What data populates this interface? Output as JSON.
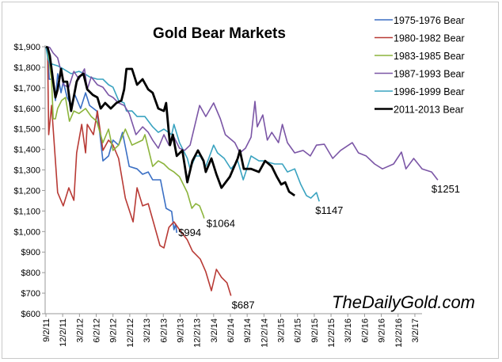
{
  "chart_data": {
    "type": "line",
    "title": "Gold Bear Markets",
    "xlabel": "",
    "ylabel": "",
    "x_unit": "months since 9/2/11",
    "ylim": [
      600,
      1900
    ],
    "y_ticks": [
      "$600",
      "$700",
      "$800",
      "$900",
      "$1,000",
      "$1,100",
      "$1,200",
      "$1,300",
      "$1,400",
      "$1,500",
      "$1,600",
      "$1,700",
      "$1,800",
      "$1,900"
    ],
    "y_tick_values": [
      600,
      700,
      800,
      900,
      1000,
      1100,
      1200,
      1300,
      1400,
      1500,
      1600,
      1700,
      1800,
      1900
    ],
    "x_ticks": [
      "9/2/11",
      "12/2/11",
      "3/2/12",
      "6/2/12",
      "9/2/12",
      "12/2/12",
      "3/2/13",
      "6/2/13",
      "9/2/13",
      "12/2/13",
      "3/2/14",
      "6/2/14",
      "9/2/14",
      "12/2/14",
      "3/2/15",
      "6/2/15",
      "9/2/15",
      "12/2/15",
      "3/2/16",
      "6/2/16",
      "9/2/16",
      "12/2/16",
      "3/2/17"
    ],
    "legend_position": "top-right",
    "grid": false,
    "watermark": "TheDailyGold.com",
    "series": [
      {
        "name": "1975-1976 Bear",
        "color": "#3a6fc4",
        "width": 1.6,
        "end_label": "$994",
        "points": [
          [
            0,
            1900
          ],
          [
            0.3,
            1885
          ],
          [
            0.6,
            1742
          ],
          [
            1.3,
            1742
          ],
          [
            1.7,
            1638
          ],
          [
            2.1,
            1769
          ],
          [
            2.7,
            1676
          ],
          [
            3.1,
            1730
          ],
          [
            3.8,
            1653
          ],
          [
            4.5,
            1614
          ],
          [
            5.2,
            1665
          ],
          [
            6.2,
            1599
          ],
          [
            7.1,
            1676
          ],
          [
            7.8,
            1614
          ],
          [
            9.1,
            1587
          ],
          [
            9.5,
            1510
          ],
          [
            10.2,
            1344
          ],
          [
            11.2,
            1368
          ],
          [
            12.0,
            1445
          ],
          [
            13.0,
            1421
          ],
          [
            13.7,
            1483
          ],
          [
            14.9,
            1317
          ],
          [
            16.3,
            1305
          ],
          [
            17.3,
            1279
          ],
          [
            18.3,
            1290
          ],
          [
            19.1,
            1252
          ],
          [
            20.5,
            1252
          ],
          [
            21.5,
            1113
          ],
          [
            22.5,
            1098
          ],
          [
            22.9,
            1009
          ],
          [
            23.2,
            1036
          ],
          [
            23.4,
            994
          ]
        ]
      },
      {
        "name": "1980-1982 Bear",
        "color": "#b83a35",
        "width": 1.6,
        "end_label": "$687",
        "points": [
          [
            0,
            1900
          ],
          [
            0.3,
            1885
          ],
          [
            0.5,
            1472
          ],
          [
            1.0,
            1614
          ],
          [
            2.1,
            1190
          ],
          [
            3.1,
            1125
          ],
          [
            4.1,
            1213
          ],
          [
            5.0,
            1152
          ],
          [
            5.5,
            1383
          ],
          [
            6.4,
            1522
          ],
          [
            7.1,
            1383
          ],
          [
            7.4,
            1522
          ],
          [
            8.5,
            1472
          ],
          [
            9.2,
            1587
          ],
          [
            10.2,
            1395
          ],
          [
            11.2,
            1445
          ],
          [
            12.0,
            1421
          ],
          [
            13.0,
            1356
          ],
          [
            14.2,
            1163
          ],
          [
            15.6,
            1047
          ],
          [
            16.3,
            1213
          ],
          [
            17.3,
            1125
          ],
          [
            18.3,
            1136
          ],
          [
            19.1,
            1059
          ],
          [
            20.4,
            932
          ],
          [
            21.1,
            920
          ],
          [
            22.0,
            1020
          ],
          [
            22.9,
            1047
          ],
          [
            23.9,
            1009
          ],
          [
            25.3,
            959
          ],
          [
            26.2,
            905
          ],
          [
            27.6,
            866
          ],
          [
            28.6,
            804
          ],
          [
            29.6,
            712
          ],
          [
            30.5,
            816
          ],
          [
            31.4,
            777
          ],
          [
            32.4,
            750
          ],
          [
            33.1,
            687
          ]
        ]
      },
      {
        "name": "1983-1985 Bear",
        "color": "#8cb43c",
        "width": 1.6,
        "end_label": "$1064",
        "points": [
          [
            0,
            1900
          ],
          [
            0.3,
            1885
          ],
          [
            0.6,
            1830
          ],
          [
            1.0,
            1742
          ],
          [
            1.3,
            1549
          ],
          [
            1.7,
            1549
          ],
          [
            2.1,
            1599
          ],
          [
            2.8,
            1638
          ],
          [
            3.5,
            1653
          ],
          [
            4.2,
            1537
          ],
          [
            5.0,
            1587
          ],
          [
            5.9,
            1575
          ],
          [
            7.1,
            1599
          ],
          [
            8.1,
            1560
          ],
          [
            9.1,
            1537
          ],
          [
            10.2,
            1433
          ],
          [
            11.2,
            1499
          ],
          [
            12.0,
            1395
          ],
          [
            13.0,
            1421
          ],
          [
            14.2,
            1499
          ],
          [
            15.4,
            1421
          ],
          [
            16.3,
            1433
          ],
          [
            17.3,
            1445
          ],
          [
            17.7,
            1472
          ],
          [
            18.3,
            1406
          ],
          [
            19.1,
            1317
          ],
          [
            20.1,
            1344
          ],
          [
            21.1,
            1329
          ],
          [
            22.0,
            1305
          ],
          [
            22.9,
            1290
          ],
          [
            23.9,
            1267
          ],
          [
            25.3,
            1190
          ],
          [
            26.1,
            1113
          ],
          [
            26.8,
            1136
          ],
          [
            27.5,
            1125
          ],
          [
            28.2,
            1075
          ],
          [
            28.3,
            1064
          ]
        ]
      },
      {
        "name": "1987-1993 Bear",
        "color": "#7b56a6",
        "width": 1.6,
        "end_label": "$1251",
        "points": [
          [
            0.3,
            1900
          ],
          [
            0.7,
            1896
          ],
          [
            1.3,
            1869
          ],
          [
            2.1,
            1846
          ],
          [
            2.7,
            1780
          ],
          [
            3.1,
            1715
          ],
          [
            4.1,
            1703
          ],
          [
            5.0,
            1780
          ],
          [
            5.9,
            1742
          ],
          [
            6.9,
            1792
          ],
          [
            7.4,
            1692
          ],
          [
            8.1,
            1753
          ],
          [
            9.2,
            1715
          ],
          [
            10.2,
            1703
          ],
          [
            11.2,
            1665
          ],
          [
            12.0,
            1653
          ],
          [
            13.0,
            1626
          ],
          [
            14.0,
            1614
          ],
          [
            14.9,
            1575
          ],
          [
            16.1,
            1472
          ],
          [
            17.3,
            1510
          ],
          [
            18.3,
            1483
          ],
          [
            19.1,
            1445
          ],
          [
            20.1,
            1406
          ],
          [
            21.1,
            1472
          ],
          [
            22.0,
            1421
          ],
          [
            22.9,
            1460
          ],
          [
            23.9,
            1406
          ],
          [
            24.8,
            1395
          ],
          [
            25.8,
            1421
          ],
          [
            27.5,
            1614
          ],
          [
            28.6,
            1560
          ],
          [
            30.0,
            1626
          ],
          [
            31.2,
            1549
          ],
          [
            32.1,
            1472
          ],
          [
            33.8,
            1433
          ],
          [
            34.7,
            1383
          ],
          [
            35.7,
            1406
          ],
          [
            36.7,
            1460
          ],
          [
            37.4,
            1634
          ],
          [
            37.8,
            1510
          ],
          [
            38.8,
            1568
          ],
          [
            39.6,
            1445
          ],
          [
            40.4,
            1483
          ],
          [
            41.6,
            1433
          ],
          [
            42.3,
            1522
          ],
          [
            43.2,
            1433
          ],
          [
            44.5,
            1383
          ],
          [
            46.0,
            1395
          ],
          [
            47.3,
            1368
          ],
          [
            48.4,
            1421
          ],
          [
            49.8,
            1425
          ],
          [
            51.3,
            1356
          ],
          [
            52.7,
            1395
          ],
          [
            54.8,
            1433
          ],
          [
            55.9,
            1383
          ],
          [
            57.3,
            1368
          ],
          [
            58.8,
            1329
          ],
          [
            60.2,
            1305
          ],
          [
            62.2,
            1329
          ],
          [
            63.6,
            1387
          ],
          [
            64.4,
            1305
          ],
          [
            65.8,
            1356
          ],
          [
            67.3,
            1305
          ],
          [
            69.0,
            1290
          ],
          [
            70.1,
            1251
          ]
        ]
      },
      {
        "name": "1996-1999 Bear",
        "color": "#3aa3c0",
        "width": 1.6,
        "end_label": "$1147",
        "points": [
          [
            0,
            1900
          ],
          [
            0.4,
            1838
          ],
          [
            0.7,
            1819
          ],
          [
            2.1,
            1807
          ],
          [
            3.1,
            1792
          ],
          [
            4.5,
            1769
          ],
          [
            5.9,
            1780
          ],
          [
            6.9,
            1769
          ],
          [
            7.8,
            1753
          ],
          [
            9.2,
            1742
          ],
          [
            10.2,
            1742
          ],
          [
            11.2,
            1715
          ],
          [
            12.0,
            1703
          ],
          [
            13.0,
            1638
          ],
          [
            14.0,
            1626
          ],
          [
            14.4,
            1587
          ],
          [
            15.4,
            1587
          ],
          [
            16.3,
            1560
          ],
          [
            17.7,
            1560
          ],
          [
            19.1,
            1510
          ],
          [
            20.1,
            1483
          ],
          [
            21.1,
            1499
          ],
          [
            22.5,
            1472
          ],
          [
            22.9,
            1522
          ],
          [
            23.9,
            1433
          ],
          [
            25.3,
            1356
          ],
          [
            25.8,
            1305
          ],
          [
            26.8,
            1368
          ],
          [
            27.6,
            1368
          ],
          [
            28.6,
            1317
          ],
          [
            30.0,
            1421
          ],
          [
            30.7,
            1383
          ],
          [
            31.9,
            1356
          ],
          [
            33.1,
            1305
          ],
          [
            34.3,
            1344
          ],
          [
            35.3,
            1252
          ],
          [
            36.7,
            1368
          ],
          [
            38.1,
            1344
          ],
          [
            38.9,
            1344
          ],
          [
            40.9,
            1329
          ],
          [
            42.3,
            1329
          ],
          [
            43.2,
            1290
          ],
          [
            44.5,
            1305
          ],
          [
            45.6,
            1229
          ],
          [
            46.6,
            1175
          ],
          [
            47.4,
            1163
          ],
          [
            48.4,
            1190
          ],
          [
            48.9,
            1147
          ]
        ]
      },
      {
        "name": "2011-2013 Bear",
        "color": "#000000",
        "width": 2.8,
        "end_label": "",
        "points": [
          [
            0,
            1900
          ],
          [
            0.3,
            1896
          ],
          [
            0.7,
            1857
          ],
          [
            1.3,
            1730
          ],
          [
            1.7,
            1653
          ],
          [
            2.1,
            1692
          ],
          [
            2.7,
            1792
          ],
          [
            3.1,
            1730
          ],
          [
            3.8,
            1730
          ],
          [
            4.5,
            1587
          ],
          [
            5.5,
            1730
          ],
          [
            5.9,
            1753
          ],
          [
            6.7,
            1769
          ],
          [
            7.4,
            1692
          ],
          [
            8.4,
            1665
          ],
          [
            9.2,
            1653
          ],
          [
            9.8,
            1599
          ],
          [
            10.6,
            1626
          ],
          [
            11.6,
            1599
          ],
          [
            12.6,
            1626
          ],
          [
            13.5,
            1638
          ],
          [
            14.0,
            1692
          ],
          [
            14.4,
            1792
          ],
          [
            15.4,
            1792
          ],
          [
            16.3,
            1715
          ],
          [
            17.3,
            1742
          ],
          [
            18.3,
            1692
          ],
          [
            19.1,
            1676
          ],
          [
            20.1,
            1599
          ],
          [
            21.1,
            1587
          ],
          [
            21.5,
            1626
          ],
          [
            22.2,
            1421
          ],
          [
            22.7,
            1472
          ],
          [
            23.4,
            1368
          ],
          [
            24.4,
            1395
          ],
          [
            25.3,
            1240
          ],
          [
            26.2,
            1344
          ],
          [
            27.2,
            1395
          ],
          [
            28.2,
            1344
          ],
          [
            28.6,
            1290
          ],
          [
            29.6,
            1356
          ],
          [
            30.5,
            1279
          ],
          [
            31.4,
            1213
          ],
          [
            32.9,
            1267
          ],
          [
            34.3,
            1356
          ],
          [
            34.7,
            1395
          ],
          [
            35.4,
            1305
          ],
          [
            36.7,
            1305
          ],
          [
            38.1,
            1290
          ],
          [
            39.2,
            1344
          ],
          [
            40.4,
            1317
          ],
          [
            41.3,
            1267
          ],
          [
            42.1,
            1229
          ],
          [
            42.8,
            1240
          ],
          [
            43.5,
            1194
          ],
          [
            44.5,
            1175
          ]
        ]
      }
    ]
  }
}
